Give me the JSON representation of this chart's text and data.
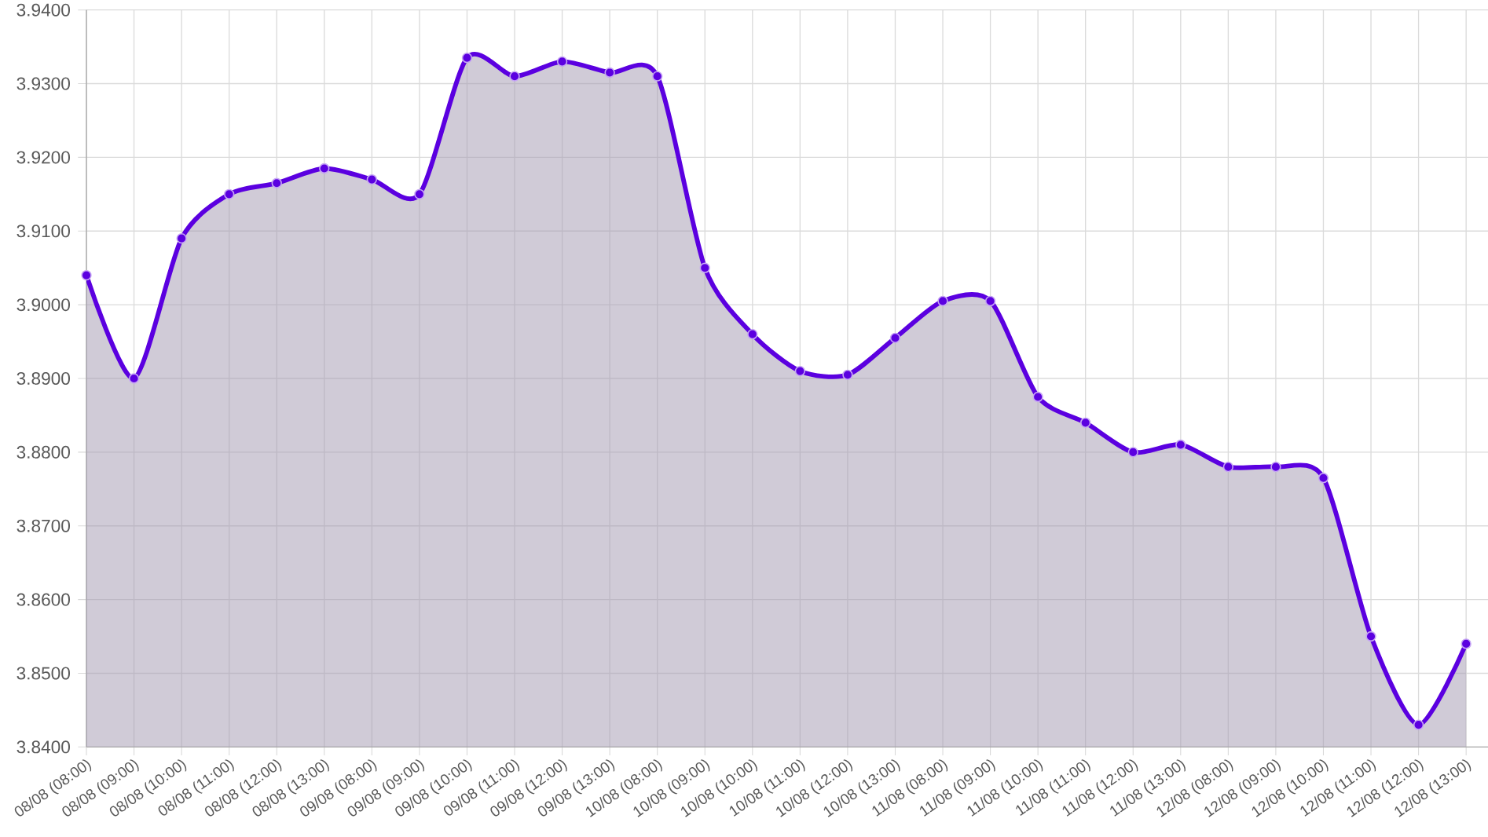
{
  "chart_data": {
    "type": "area",
    "categories": [
      "08/08 (08:00)",
      "08/08 (09:00)",
      "08/08 (10:00)",
      "08/08 (11:00)",
      "08/08 (12:00)",
      "08/08 (13:00)",
      "09/08 (08:00)",
      "09/08 (09:00)",
      "09/08 (10:00)",
      "09/08 (11:00)",
      "09/08 (12:00)",
      "09/08 (13:00)",
      "10/08 (08:00)",
      "10/08 (09:00)",
      "10/08 (10:00)",
      "10/08 (11:00)",
      "10/08 (12:00)",
      "10/08 (13:00)",
      "11/08 (08:00)",
      "11/08 (09:00)",
      "11/08 (10:00)",
      "11/08 (11:00)",
      "11/08 (12:00)",
      "11/08 (13:00)",
      "12/08 (08:00)",
      "12/08 (09:00)",
      "12/08 (10:00)",
      "12/08 (11:00)",
      "12/08 (12:00)",
      "12/08 (13:00)"
    ],
    "series": [
      {
        "color": "#5b00e0",
        "values": [
          3.904,
          3.89,
          3.909,
          3.915,
          3.9165,
          3.9185,
          3.917,
          3.915,
          3.9335,
          3.931,
          3.933,
          3.9315,
          3.931,
          3.905,
          3.896,
          3.891,
          3.8905,
          3.8955,
          3.9005,
          3.9005,
          3.8875,
          3.884,
          3.88,
          3.881,
          3.878,
          3.878,
          3.8765,
          3.855,
          3.843,
          3.854
        ]
      }
    ],
    "ylim": [
      3.84,
      3.94
    ],
    "yticks": [
      {
        "value": 3.84,
        "label": "3.8400"
      },
      {
        "value": 3.85,
        "label": "3.8500"
      },
      {
        "value": 3.86,
        "label": "3.8600"
      },
      {
        "value": 3.87,
        "label": "3.8700"
      },
      {
        "value": 3.88,
        "label": "3.8800"
      },
      {
        "value": 3.89,
        "label": "3.8900"
      },
      {
        "value": 3.9,
        "label": "3.9000"
      },
      {
        "value": 3.91,
        "label": "3.9100"
      },
      {
        "value": 3.92,
        "label": "3.9200"
      },
      {
        "value": 3.93,
        "label": "3.9300"
      },
      {
        "value": 3.94,
        "label": "3.9400"
      }
    ],
    "grid": true,
    "marker": "circle",
    "line_style": "solid"
  }
}
